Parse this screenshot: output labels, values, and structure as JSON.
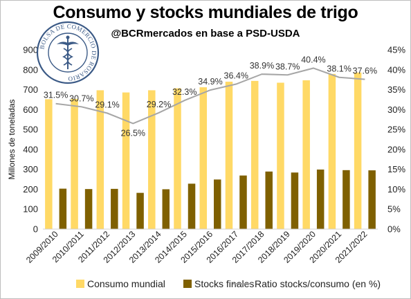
{
  "title": "Consumo y stocks mundiales de trigo",
  "subtitle": "@BCRmercados en base a PSD-USDA",
  "logo": {
    "text": "BOLSA DE COMERCIO DE ROSARIO",
    "icon": "caduceus-seal-icon"
  },
  "legend": {
    "consumo": "Consumo mundial",
    "stocks": "Stocks finales",
    "ratio": "Ratio stocks/consumo (en %)"
  },
  "colors": {
    "consumo": "#FFD966",
    "stocks": "#7F6000",
    "ratio": "#A6A6A6"
  },
  "chart_data": {
    "type": "bar",
    "categories": [
      "2009/2010",
      "2010/2011",
      "2011/2012",
      "2012/2013",
      "2013/2014",
      "2014/2015",
      "2015/2016",
      "2016/2017",
      "2017/2018",
      "2018/2019",
      "2019/2020",
      "2020/2021",
      "2021/2022"
    ],
    "series": [
      {
        "name": "Consumo mundial",
        "type": "bar",
        "axis": "left",
        "values": [
          652,
          654,
          697,
          686,
          697,
          707,
          712,
          740,
          744,
          735,
          747,
          779,
          786
        ]
      },
      {
        "name": "Stocks finales",
        "type": "bar",
        "axis": "left",
        "values": [
          203,
          201,
          202,
          182,
          200,
          228,
          249,
          269,
          289,
          284,
          299,
          296,
          295
        ]
      },
      {
        "name": "Ratio stocks/consumo (en %)",
        "type": "line",
        "axis": "right",
        "values": [
          31.5,
          30.7,
          29.1,
          26.5,
          29.2,
          32.3,
          34.9,
          36.4,
          38.9,
          38.7,
          40.4,
          38.1,
          37.6
        ],
        "labels": [
          "31.5%",
          "30.7%",
          "29.1%",
          "26.5%",
          "29.2%",
          "32.3%",
          "34.9%",
          "36.4%",
          "38.9%",
          "38.7%",
          "40.4%",
          "38.1%",
          "37.6%"
        ]
      }
    ],
    "ylabel": "Millones de toneladas",
    "ylim": [
      0,
      900
    ],
    "yticks": [
      "0",
      "100",
      "200",
      "300",
      "400",
      "500",
      "600",
      "700",
      "800",
      "900"
    ],
    "y2lim": [
      0,
      45
    ],
    "y2ticks": [
      "0%",
      "5%",
      "10%",
      "15%",
      "20%",
      "25%",
      "30%",
      "35%",
      "40%",
      "45%"
    ],
    "grid": false,
    "legend_position": "bottom"
  }
}
